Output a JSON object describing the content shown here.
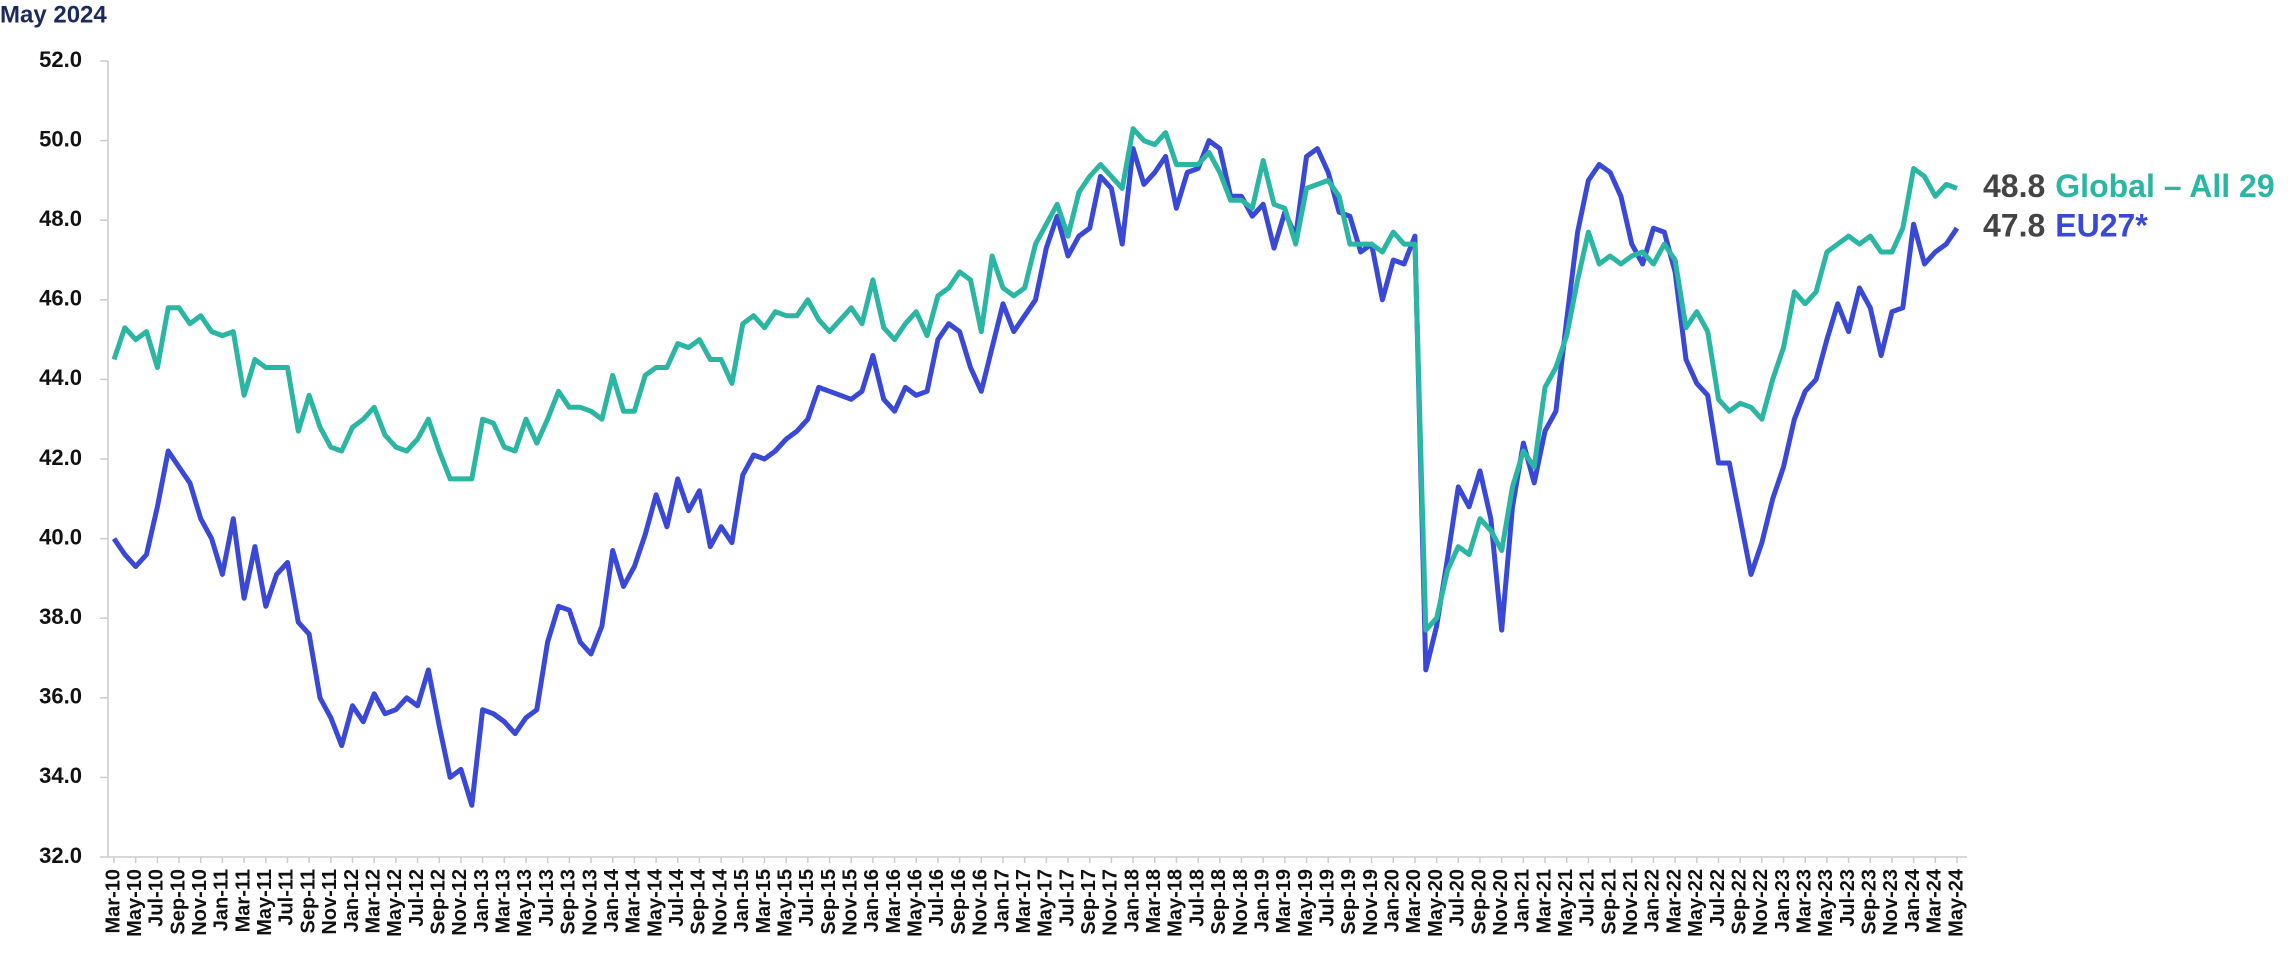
{
  "chart_data": {
    "type": "line",
    "title": "May 2024",
    "categories": [
      "Mar-10",
      null,
      "May-10",
      null,
      "Jul-10",
      null,
      "Sep-10",
      null,
      "Nov-10",
      null,
      "Jan-11",
      null,
      "Mar-11",
      null,
      "May-11",
      null,
      "Jul-11",
      null,
      "Sep-11",
      null,
      "Nov-11",
      null,
      "Jan-12",
      null,
      "Mar-12",
      null,
      "May-12",
      null,
      "Jul-12",
      null,
      "Sep-12",
      null,
      "Nov-12",
      null,
      "Jan-13",
      null,
      "Mar-13",
      null,
      "May-13",
      null,
      "Jul-13",
      null,
      "Sep-13",
      null,
      "Nov-13",
      null,
      "Jan-14",
      null,
      "Mar-14",
      null,
      "May-14",
      null,
      "Jul-14",
      null,
      "Sep-14",
      null,
      "Nov-14",
      null,
      "Jan-15",
      null,
      "Mar-15",
      null,
      "May-15",
      null,
      "Jul-15",
      null,
      "Sep-15",
      null,
      "Nov-15",
      null,
      "Jan-16",
      null,
      "Mar-16",
      null,
      "May-16",
      null,
      "Jul-16",
      null,
      "Sep-16",
      null,
      "Nov-16",
      null,
      "Jan-17",
      null,
      "Mar-17",
      null,
      "May-17",
      null,
      "Jul-17",
      null,
      "Sep-17",
      null,
      "Nov-17",
      null,
      "Jan-18",
      null,
      "Mar-18",
      null,
      "May-18",
      null,
      "Jul-18",
      null,
      "Sep-18",
      null,
      "Nov-18",
      null,
      "Jan-19",
      null,
      "Mar-19",
      null,
      "May-19",
      null,
      "Jul-19",
      null,
      "Sep-19",
      null,
      "Nov-19",
      null,
      "Jan-20",
      null,
      "Mar-20",
      null,
      "May-20",
      null,
      "Jul-20",
      null,
      "Sep-20",
      null,
      "Nov-20",
      null,
      "Jan-21",
      null,
      "Mar-21",
      null,
      "May-21",
      null,
      "Jul-21",
      null,
      "Sep-21",
      null,
      "Nov-21",
      null,
      "Jan-22",
      null,
      "Mar-22",
      null,
      "May-22",
      null,
      "Jul-22",
      null,
      "Sep-22",
      null,
      "Nov-22",
      null,
      "Jan-23",
      null,
      "Mar-23",
      null,
      "May-23",
      null,
      "Jul-23",
      null,
      "Sep-23",
      null,
      "Nov-23",
      null,
      "Jan-24",
      null,
      "Mar-24",
      null,
      "May-24"
    ],
    "series": [
      {
        "name": "Global – All 29",
        "color": "#2bb5a3",
        "values": [
          44.5,
          45.3,
          45.0,
          45.2,
          44.3,
          45.8,
          45.8,
          45.4,
          45.6,
          45.2,
          45.1,
          45.2,
          43.6,
          44.5,
          44.3,
          44.3,
          44.3,
          42.7,
          43.6,
          42.8,
          42.3,
          42.2,
          42.8,
          43.0,
          43.3,
          42.6,
          42.3,
          42.2,
          42.5,
          43.0,
          42.2,
          41.5,
          41.5,
          41.5,
          43.0,
          42.9,
          42.3,
          42.2,
          43.0,
          42.4,
          43.0,
          43.7,
          43.3,
          43.3,
          43.2,
          43.0,
          44.1,
          43.2,
          43.2,
          44.1,
          44.3,
          44.3,
          44.9,
          44.8,
          45.0,
          44.5,
          44.5,
          43.9,
          45.4,
          45.6,
          45.3,
          45.7,
          45.6,
          45.6,
          46.0,
          45.5,
          45.2,
          45.5,
          45.8,
          45.4,
          46.5,
          45.3,
          45.0,
          45.4,
          45.7,
          45.1,
          46.1,
          46.3,
          46.7,
          46.5,
          45.2,
          47.1,
          46.3,
          46.1,
          46.3,
          47.4,
          47.9,
          48.4,
          47.6,
          48.7,
          49.1,
          49.4,
          49.1,
          48.8,
          50.3,
          50.0,
          49.9,
          50.2,
          49.4,
          49.4,
          49.4,
          49.7,
          49.2,
          48.5,
          48.5,
          48.3,
          49.5,
          48.4,
          48.3,
          47.4,
          48.8,
          48.9,
          49.0,
          48.6,
          47.4,
          47.4,
          47.4,
          47.2,
          47.7,
          47.4,
          47.4,
          37.7,
          38.0,
          39.2,
          39.8,
          39.6,
          40.5,
          40.2,
          39.7,
          41.3,
          42.2,
          41.8,
          43.8,
          44.3,
          45.1,
          46.5,
          47.7,
          46.9,
          47.1,
          46.9,
          47.1,
          47.2,
          46.9,
          47.4,
          47.0,
          45.3,
          45.7,
          45.2,
          43.5,
          43.2,
          43.4,
          43.3,
          43.0,
          44.0,
          44.8,
          46.2,
          45.9,
          46.2,
          47.2,
          47.4,
          47.6,
          47.4,
          47.6,
          47.2,
          47.2,
          47.8,
          49.3,
          49.1,
          48.6,
          48.9,
          48.8
        ]
      },
      {
        "name": "EU27*",
        "color": "#3a48d6",
        "values": [
          40.0,
          39.6,
          39.3,
          39.6,
          40.8,
          42.2,
          41.8,
          41.4,
          40.5,
          40.0,
          39.1,
          40.5,
          38.5,
          39.8,
          38.3,
          39.1,
          39.4,
          37.9,
          37.6,
          36.0,
          35.5,
          34.8,
          35.8,
          35.4,
          36.1,
          35.6,
          35.7,
          36.0,
          35.8,
          36.7,
          35.3,
          34.0,
          34.2,
          33.3,
          35.7,
          35.6,
          35.4,
          35.1,
          35.5,
          35.7,
          37.4,
          38.3,
          38.2,
          37.4,
          37.1,
          37.8,
          39.7,
          38.8,
          39.3,
          40.1,
          41.1,
          40.3,
          41.5,
          40.7,
          41.2,
          39.8,
          40.3,
          39.9,
          41.6,
          42.1,
          42.0,
          42.2,
          42.5,
          42.7,
          43.0,
          43.8,
          43.7,
          43.6,
          43.5,
          43.7,
          44.6,
          43.5,
          43.2,
          43.8,
          43.6,
          43.7,
          45.0,
          45.4,
          45.2,
          44.3,
          43.7,
          44.8,
          45.9,
          45.2,
          45.6,
          46.0,
          47.3,
          48.1,
          47.1,
          47.6,
          47.8,
          49.1,
          48.8,
          47.4,
          49.8,
          48.9,
          49.2,
          49.6,
          48.3,
          49.2,
          49.3,
          50.0,
          49.8,
          48.6,
          48.6,
          48.1,
          48.4,
          47.3,
          48.2,
          47.6,
          49.6,
          49.8,
          49.2,
          48.2,
          48.1,
          47.2,
          47.4,
          46.0,
          47.0,
          46.9,
          47.6,
          36.7,
          37.8,
          39.5,
          41.3,
          40.8,
          41.7,
          40.5,
          37.7,
          40.8,
          42.4,
          41.4,
          42.7,
          43.2,
          45.5,
          47.7,
          49.0,
          49.4,
          49.2,
          48.6,
          47.4,
          46.9,
          47.8,
          47.7,
          46.7,
          44.5,
          43.9,
          43.6,
          41.9,
          41.9,
          40.5,
          39.1,
          39.9,
          41.0,
          41.8,
          43.0,
          43.7,
          44.0,
          45.0,
          45.9,
          45.2,
          46.3,
          45.8,
          44.6,
          45.7,
          45.8,
          47.9,
          46.9,
          47.2,
          47.4,
          47.8
        ]
      }
    ],
    "ylim": [
      32,
      52
    ],
    "yticks": [
      {
        "value": 32,
        "label": "32.0"
      },
      {
        "value": 34,
        "label": "34.0"
      },
      {
        "value": 36,
        "label": "36.0"
      },
      {
        "value": 38,
        "label": "38.0"
      },
      {
        "value": 40,
        "label": "40.0"
      },
      {
        "value": 42,
        "label": "42.0"
      },
      {
        "value": 44,
        "label": "44.0"
      },
      {
        "value": 46,
        "label": "46.0"
      },
      {
        "value": 48,
        "label": "48.0"
      },
      {
        "value": 50,
        "label": "50.0"
      },
      {
        "value": 52,
        "label": "52.0"
      }
    ],
    "grid": false
  }
}
